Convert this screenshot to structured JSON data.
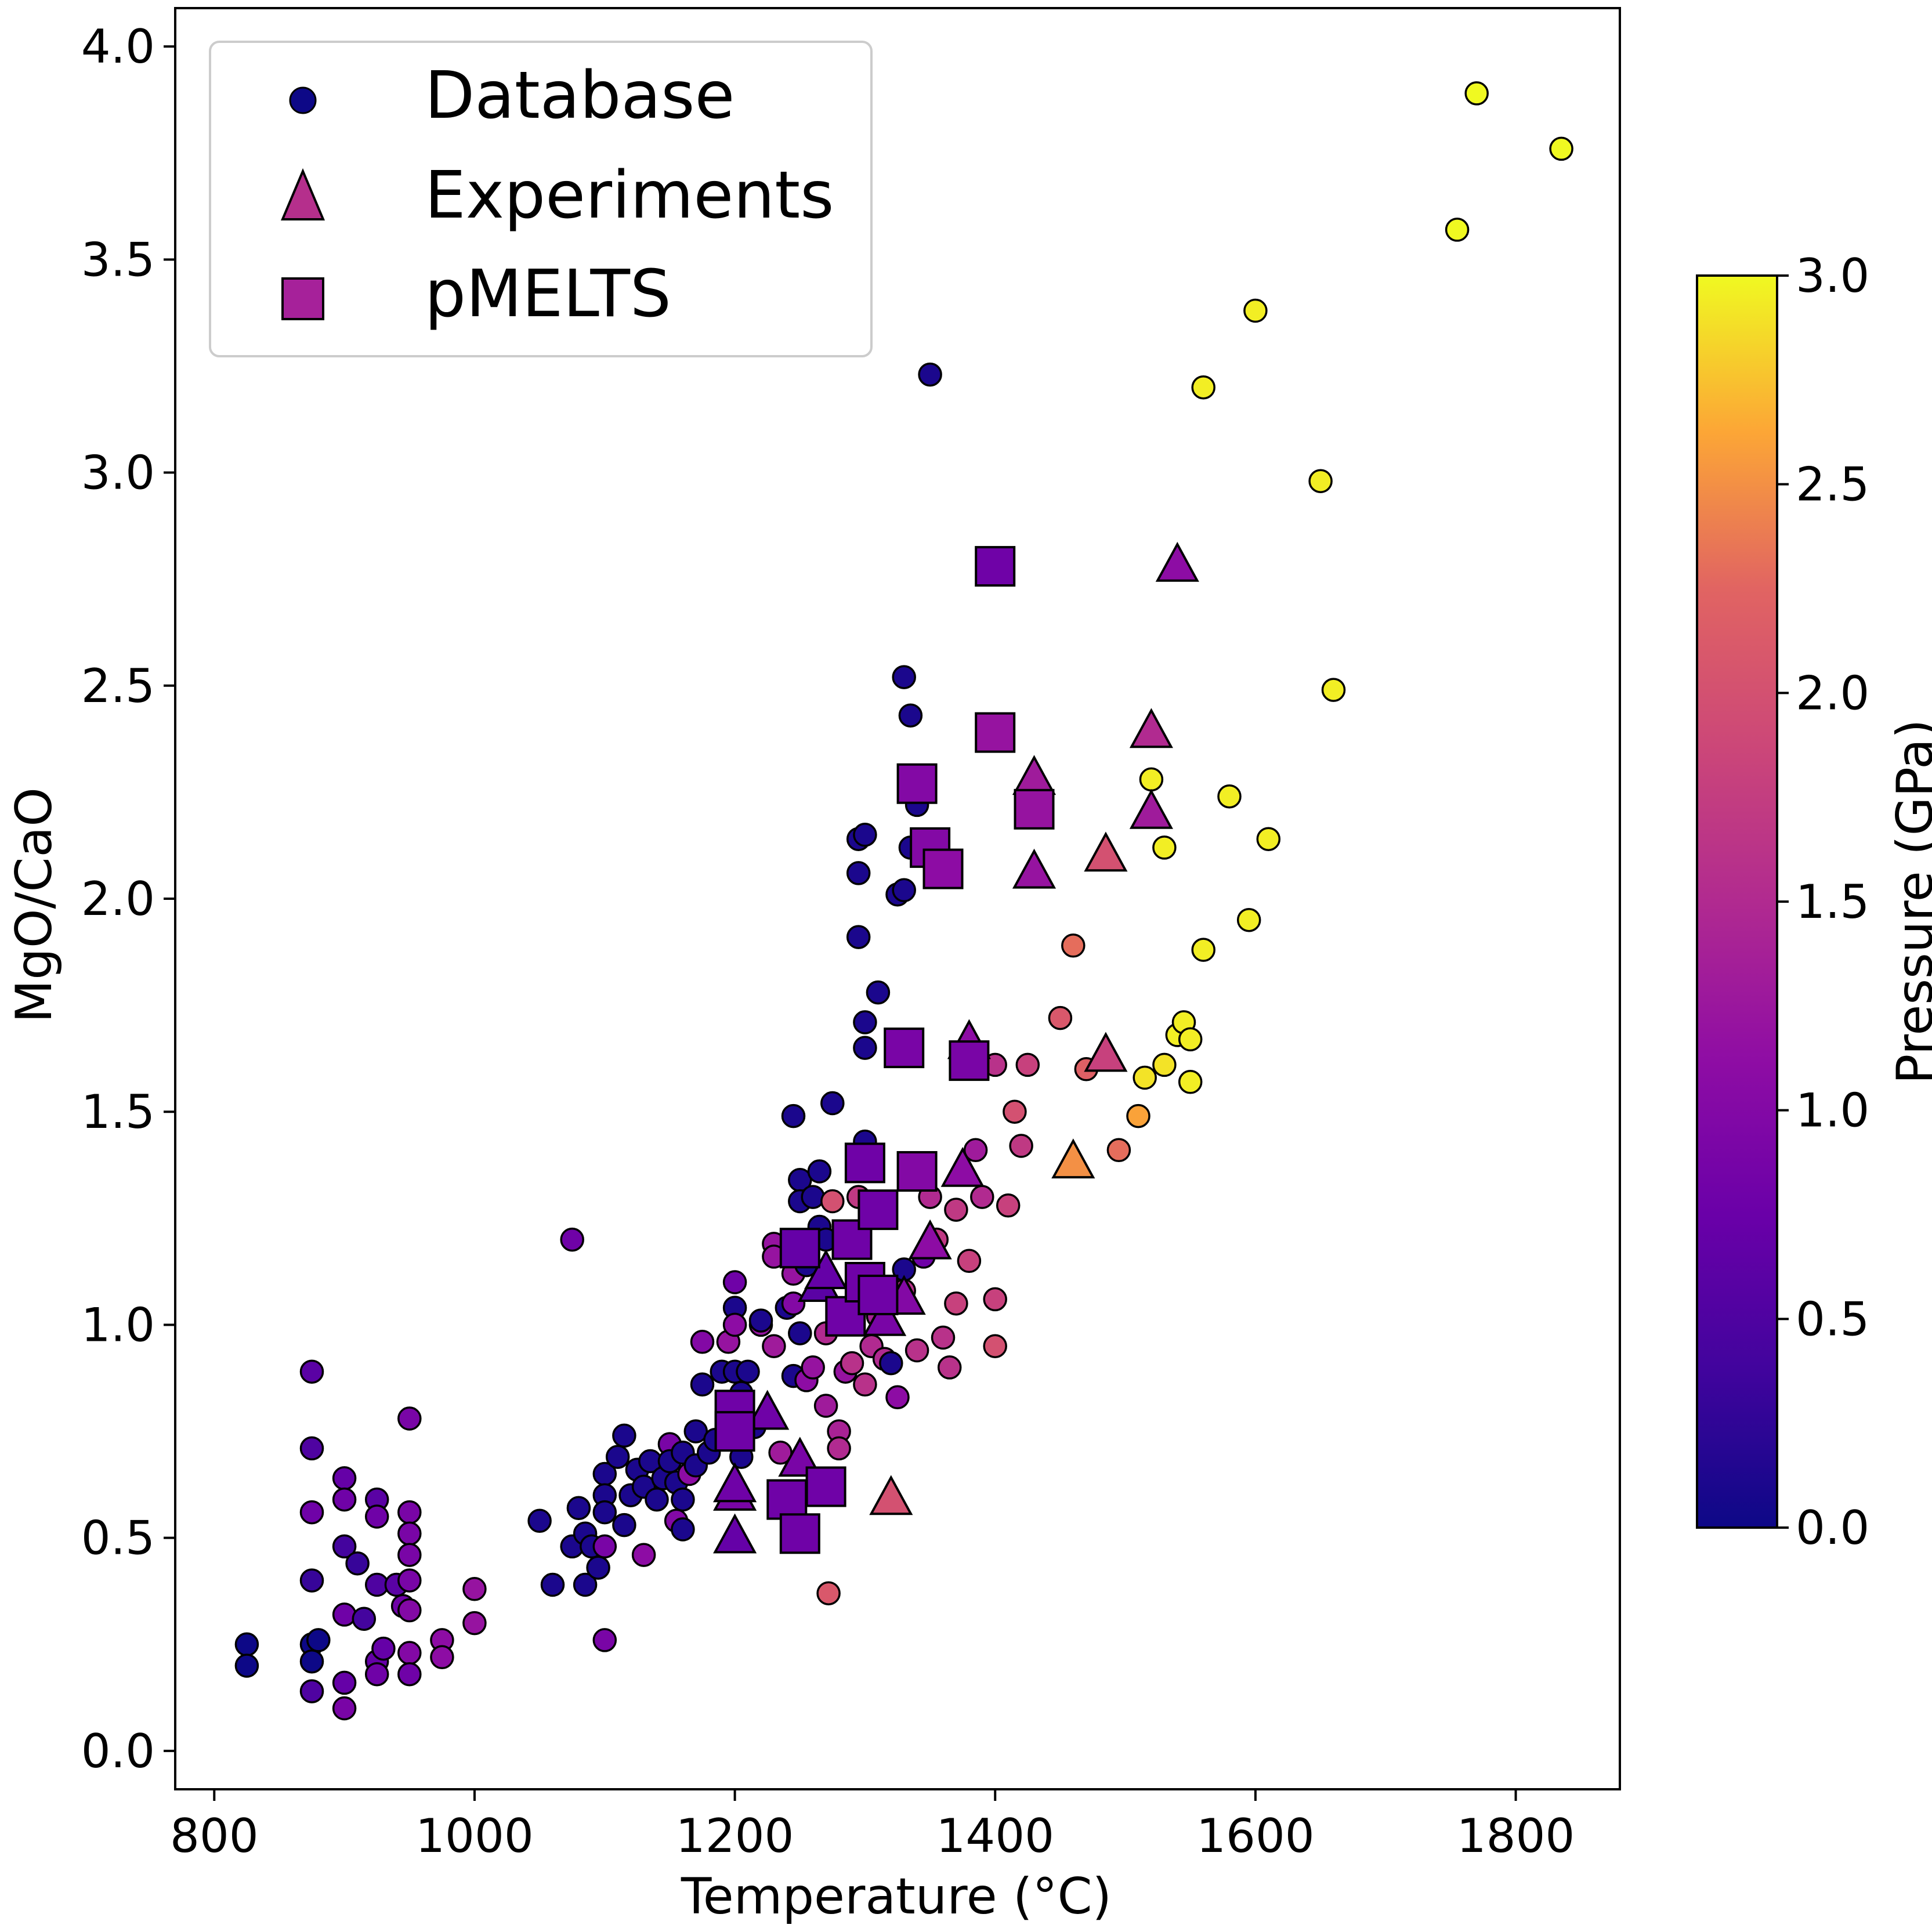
{
  "chart_data": {
    "type": "scatter",
    "xlabel": "Temperature (°C)",
    "ylabel": "MgO/CaO",
    "xlim": [
      770,
      1880
    ],
    "ylim": [
      -0.09,
      4.09
    ],
    "xticks": [
      800,
      1000,
      1200,
      1400,
      1600,
      1800
    ],
    "xtick_labels": [
      "800",
      "1000",
      "1200",
      "1400",
      "1600",
      "1800"
    ],
    "yticks": [
      0.0,
      0.5,
      1.0,
      1.5,
      2.0,
      2.5,
      3.0,
      3.5,
      4.0
    ],
    "ytick_labels": [
      "0.0",
      "0.5",
      "1.0",
      "1.5",
      "2.0",
      "2.5",
      "3.0",
      "3.5",
      "4.0"
    ],
    "grid": false,
    "legend_position": "top-left",
    "colormap": "plasma",
    "colorbar": {
      "label": "Pressure (GPa)",
      "range": [
        0,
        3
      ],
      "ticks": [
        0.0,
        0.5,
        1.0,
        1.5,
        2.0,
        2.5,
        3.0
      ],
      "tick_labels": [
        "0.0",
        "0.5",
        "1.0",
        "1.5",
        "2.0",
        "2.5",
        "3.0"
      ]
    },
    "series": [
      {
        "name": "Database",
        "marker": "circle",
        "legend_color": "#0d0887",
        "fields": [
          "temperature",
          "mgo_cao",
          "pressure"
        ],
        "points": [
          [
            825,
            0.25,
            0
          ],
          [
            825,
            0.2,
            0
          ],
          [
            875,
            0.25,
            0
          ],
          [
            875,
            0.21,
            0
          ],
          [
            880,
            0.26,
            0
          ],
          [
            875,
            0.14,
            0.5
          ],
          [
            875,
            0.4,
            0.3
          ],
          [
            875,
            0.56,
            0.8
          ],
          [
            875,
            0.71,
            0.5
          ],
          [
            875,
            0.89,
            0.6
          ],
          [
            900,
            0.64,
            0.7
          ],
          [
            900,
            0.59,
            0.8
          ],
          [
            900,
            0.48,
            0.4
          ],
          [
            900,
            0.32,
            0.8
          ],
          [
            900,
            0.16,
            0.7
          ],
          [
            900,
            0.1,
            0.9
          ],
          [
            910,
            0.44,
            0.3
          ],
          [
            915,
            0.31,
            0.4
          ],
          [
            925,
            0.59,
            0.6
          ],
          [
            925,
            0.55,
            0.8
          ],
          [
            925,
            0.39,
            0.5
          ],
          [
            925,
            0.21,
            0.7
          ],
          [
            925,
            0.18,
            0.8
          ],
          [
            930,
            0.24,
            0.7
          ],
          [
            940,
            0.39,
            0.6
          ],
          [
            945,
            0.34,
            0.8
          ],
          [
            950,
            0.4,
            0.9
          ],
          [
            950,
            0.78,
            0.9
          ],
          [
            950,
            0.56,
            0.9
          ],
          [
            950,
            0.51,
            0.9
          ],
          [
            950,
            0.46,
            0.9
          ],
          [
            950,
            0.33,
            1.0
          ],
          [
            950,
            0.23,
            1.0
          ],
          [
            950,
            0.18,
            0.8
          ],
          [
            975,
            0.26,
            1.1
          ],
          [
            975,
            0.22,
            1.1
          ],
          [
            1000,
            0.38,
            1.2
          ],
          [
            1000,
            0.3,
            1.2
          ],
          [
            1050,
            0.54,
            0.1
          ],
          [
            1060,
            0.39,
            0.1
          ],
          [
            1075,
            0.48,
            0.1
          ],
          [
            1075,
            1.2,
            0.8
          ],
          [
            1080,
            0.57,
            0.1
          ],
          [
            1085,
            0.39,
            0.1
          ],
          [
            1085,
            0.51,
            0.1
          ],
          [
            1090,
            0.48,
            0.1
          ],
          [
            1095,
            0.43,
            0.1
          ],
          [
            1100,
            0.26,
            0.9
          ],
          [
            1100,
            0.65,
            0.1
          ],
          [
            1100,
            0.6,
            0.1
          ],
          [
            1100,
            0.56,
            0.1
          ],
          [
            1100,
            0.48,
            0.9
          ],
          [
            1110,
            0.69,
            0.1
          ],
          [
            1115,
            0.74,
            0.1
          ],
          [
            1115,
            0.53,
            0.1
          ],
          [
            1120,
            0.6,
            0.1
          ],
          [
            1125,
            0.66,
            0.1
          ],
          [
            1130,
            0.62,
            0.1
          ],
          [
            1130,
            0.46,
            1.1
          ],
          [
            1135,
            0.68,
            0.1
          ],
          [
            1140,
            0.59,
            0.1
          ],
          [
            1145,
            0.64,
            0.1
          ],
          [
            1150,
            0.72,
            0.9
          ],
          [
            1150,
            0.68,
            0.1
          ],
          [
            1155,
            0.63,
            0.1
          ],
          [
            1155,
            0.54,
            1.0
          ],
          [
            1160,
            0.7,
            0.1
          ],
          [
            1160,
            0.59,
            0.1
          ],
          [
            1160,
            0.52,
            0.1
          ],
          [
            1165,
            0.65,
            1.1
          ],
          [
            1170,
            0.75,
            0.1
          ],
          [
            1170,
            0.67,
            0.1
          ],
          [
            1175,
            0.86,
            0.1
          ],
          [
            1175,
            0.96,
            1.0
          ],
          [
            1180,
            0.7,
            0.1
          ],
          [
            1185,
            0.73,
            0.1
          ],
          [
            1190,
            0.89,
            0.1
          ],
          [
            1195,
            0.81,
            0.1
          ],
          [
            1195,
            0.96,
            1.2
          ],
          [
            1200,
            0.89,
            0.1
          ],
          [
            1200,
            1.04,
            0.1
          ],
          [
            1200,
            1.1,
            0.8
          ],
          [
            1200,
            1.0,
            1.1
          ],
          [
            1205,
            0.84,
            0.1
          ],
          [
            1205,
            0.69,
            0.1
          ],
          [
            1210,
            0.89,
            0.1
          ],
          [
            1215,
            0.76,
            0.1
          ],
          [
            1220,
            1.0,
            1.2
          ],
          [
            1220,
            1.01,
            0.1
          ],
          [
            1230,
            1.19,
            1.2
          ],
          [
            1230,
            1.16,
            1.2
          ],
          [
            1230,
            0.95,
            1.3
          ],
          [
            1235,
            0.7,
            1.3
          ],
          [
            1240,
            1.04,
            0.1
          ],
          [
            1245,
            0.88,
            0.1
          ],
          [
            1245,
            1.49,
            0.1
          ],
          [
            1245,
            1.05,
            1.0
          ],
          [
            1245,
            1.12,
            1.2
          ],
          [
            1250,
            0.98,
            0.1
          ],
          [
            1250,
            1.34,
            0.1
          ],
          [
            1250,
            1.29,
            0.1
          ],
          [
            1255,
            1.14,
            0.1
          ],
          [
            1255,
            0.87,
            1.1
          ],
          [
            1260,
            1.3,
            0.1
          ],
          [
            1260,
            0.9,
            1.2
          ],
          [
            1265,
            1.36,
            0.1
          ],
          [
            1265,
            1.23,
            0.1
          ],
          [
            1270,
            1.2,
            0.1
          ],
          [
            1270,
            0.98,
            1.5
          ],
          [
            1270,
            0.81,
            1.3
          ],
          [
            1275,
            1.52,
            0.1
          ],
          [
            1275,
            1.29,
            2.0
          ],
          [
            1280,
            0.75,
            1.4
          ],
          [
            1280,
            0.71,
            1.5
          ],
          [
            1285,
            0.89,
            1.2
          ],
          [
            1290,
            0.91,
            1.6
          ],
          [
            1295,
            2.14,
            0.1
          ],
          [
            1295,
            2.06,
            0.1
          ],
          [
            1295,
            1.91,
            0.1
          ],
          [
            1295,
            1.3,
            1.7
          ],
          [
            1300,
            2.15,
            0.1
          ],
          [
            1300,
            1.71,
            0.1
          ],
          [
            1300,
            1.65,
            0.1
          ],
          [
            1300,
            1.43,
            0.1
          ],
          [
            1300,
            0.86,
            1.6
          ],
          [
            1305,
            0.95,
            1.5
          ],
          [
            1310,
            1.78,
            0.1
          ],
          [
            1310,
            1.02,
            1.4
          ],
          [
            1315,
            0.92,
            1.5
          ],
          [
            1320,
            0.91,
            0.1
          ],
          [
            1325,
            2.01,
            0.1
          ],
          [
            1325,
            0.83,
            1.1
          ],
          [
            1330,
            2.52,
            0.1
          ],
          [
            1330,
            2.02,
            0.1
          ],
          [
            1330,
            1.13,
            0.1
          ],
          [
            1330,
            1.08,
            1.6
          ],
          [
            1335,
            2.43,
            0.1
          ],
          [
            1335,
            2.12,
            0.1
          ],
          [
            1340,
            2.22,
            0.1
          ],
          [
            1340,
            0.94,
            1.6
          ],
          [
            1345,
            1.16,
            0.8
          ],
          [
            1350,
            3.23,
            0.1
          ],
          [
            1350,
            1.3,
            1.5
          ],
          [
            1355,
            1.2,
            1.7
          ],
          [
            1360,
            0.97,
            1.6
          ],
          [
            1365,
            0.9,
            1.6
          ],
          [
            1370,
            1.27,
            1.7
          ],
          [
            1370,
            1.05,
            1.8
          ],
          [
            1380,
            1.15,
            1.8
          ],
          [
            1385,
            1.41,
            1.3
          ],
          [
            1390,
            1.3,
            1.5
          ],
          [
            1400,
            1.61,
            1.6
          ],
          [
            1400,
            1.06,
            1.8
          ],
          [
            1400,
            0.95,
            2.0
          ],
          [
            1410,
            1.28,
            1.8
          ],
          [
            1415,
            1.5,
            2.0
          ],
          [
            1420,
            1.42,
            1.7
          ],
          [
            1425,
            1.61,
            1.8
          ],
          [
            1450,
            1.72,
            2.1
          ],
          [
            1460,
            1.89,
            2.3
          ],
          [
            1470,
            1.6,
            2.2
          ],
          [
            1495,
            1.41,
            2.3
          ],
          [
            1510,
            1.49,
            2.6
          ],
          [
            1515,
            1.58,
            2.9
          ],
          [
            1520,
            2.28,
            2.95
          ],
          [
            1530,
            2.12,
            2.95
          ],
          [
            1530,
            1.61,
            2.9
          ],
          [
            1540,
            1.68,
            2.95
          ],
          [
            1545,
            1.71,
            2.95
          ],
          [
            1550,
            1.57,
            2.95
          ],
          [
            1550,
            1.67,
            2.95
          ],
          [
            1560,
            3.2,
            2.95
          ],
          [
            1560,
            1.88,
            2.95
          ],
          [
            1580,
            2.24,
            2.95
          ],
          [
            1595,
            1.95,
            2.95
          ],
          [
            1600,
            3.38,
            2.95
          ],
          [
            1610,
            2.14,
            2.95
          ],
          [
            1650,
            2.98,
            2.95
          ],
          [
            1660,
            2.49,
            2.95
          ],
          [
            1755,
            3.57,
            3.0
          ],
          [
            1770,
            3.89,
            3.0
          ],
          [
            1835,
            3.76,
            3.0
          ],
          [
            1272,
            0.37,
            2.1
          ]
        ]
      },
      {
        "name": "Experiments",
        "marker": "triangle",
        "legend_color": "#b52f8c",
        "fields": [
          "temperature",
          "mgo_cao",
          "pressure"
        ],
        "points": [
          [
            1200,
            0.5,
            0.7
          ],
          [
            1200,
            0.6,
            0.9
          ],
          [
            1200,
            0.62,
            0.8
          ],
          [
            1225,
            0.79,
            0.8
          ],
          [
            1250,
            0.68,
            0.9
          ],
          [
            1265,
            1.09,
            0.6
          ],
          [
            1270,
            1.12,
            0.7
          ],
          [
            1315,
            1.01,
            0.9
          ],
          [
            1320,
            0.59,
            2.0
          ],
          [
            1330,
            1.06,
            1.0
          ],
          [
            1350,
            1.19,
            1.1
          ],
          [
            1375,
            1.36,
            1.1
          ],
          [
            1380,
            1.66,
            1.1
          ],
          [
            1430,
            2.28,
            1.3
          ],
          [
            1430,
            2.06,
            1.2
          ],
          [
            1460,
            1.38,
            2.5
          ],
          [
            1485,
            2.1,
            2.0
          ],
          [
            1485,
            1.63,
            1.8
          ],
          [
            1520,
            2.39,
            1.5
          ],
          [
            1520,
            2.2,
            1.3
          ],
          [
            1540,
            2.78,
            1.1
          ]
        ]
      },
      {
        "name": "pMELTS",
        "marker": "square",
        "legend_color": "#a6219a",
        "fields": [
          "temperature",
          "mgo_cao",
          "pressure"
        ],
        "points": [
          [
            1200,
            0.8,
            0.8
          ],
          [
            1200,
            0.75,
            0.8
          ],
          [
            1240,
            0.59,
            0.8
          ],
          [
            1250,
            0.51,
            0.8
          ],
          [
            1270,
            0.62,
            0.8
          ],
          [
            1250,
            1.18,
            0.7
          ],
          [
            1285,
            1.02,
            0.8
          ],
          [
            1290,
            1.2,
            0.8
          ],
          [
            1300,
            1.38,
            0.8
          ],
          [
            1310,
            1.27,
            0.8
          ],
          [
            1300,
            1.1,
            0.8
          ],
          [
            1310,
            1.07,
            0.8
          ],
          [
            1330,
            1.65,
            0.9
          ],
          [
            1340,
            2.27,
            1.0
          ],
          [
            1340,
            1.36,
            1.0
          ],
          [
            1350,
            2.12,
            1.0
          ],
          [
            1360,
            2.07,
            1.1
          ],
          [
            1380,
            1.62,
            0.9
          ],
          [
            1400,
            2.78,
            0.8
          ],
          [
            1400,
            2.39,
            1.2
          ],
          [
            1430,
            2.21,
            1.2
          ]
        ]
      }
    ]
  }
}
